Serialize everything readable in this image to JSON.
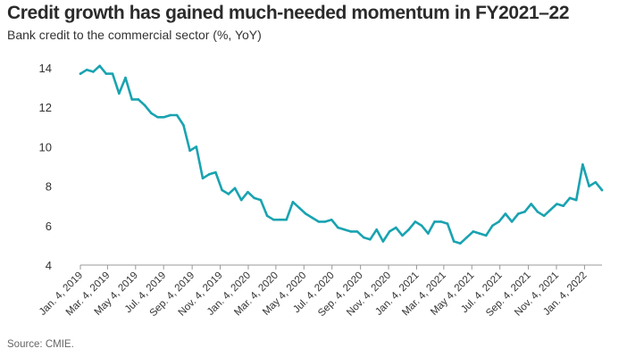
{
  "title": "Credit growth has gained much-needed momentum in FY2021–22",
  "subtitle": "Bank credit to the commercial sector (%, YoY)",
  "source": "Source: CMIE.",
  "colors": {
    "line": "#19a3b1",
    "axis": "#999999",
    "text": "#333333"
  },
  "chart_data": {
    "type": "line",
    "title": "Credit growth has gained much-needed momentum in FY2021–22",
    "ylabel": "Bank credit to the commercial sector (%, YoY)",
    "xlabel": "",
    "ylim": [
      4,
      14
    ],
    "yticks": [
      4,
      6,
      8,
      10,
      12,
      14
    ],
    "grid": false,
    "x_start": "Jan. 4, 2019",
    "x_interval_days": 14,
    "xtick_labels": [
      "Jan. 4, 2019",
      "Mar. 4, 2019",
      "May 4, 2019",
      "Jul. 4, 2019",
      "Sep. 4, 2019",
      "Nov. 4, 2019",
      "Jan. 4, 2020",
      "Mar. 4, 2020",
      "May 4, 2020",
      "Jul. 4, 2020",
      "Sep. 4, 2020",
      "Nov. 4, 2020",
      "Jan. 4, 2021",
      "Mar. 4, 2021",
      "May 4, 2021",
      "Jul. 4, 2021",
      "Sep. 4, 2021",
      "Nov. 4, 2021",
      "Jan. 4, 2022"
    ],
    "series": [
      {
        "name": "Bank credit to the commercial sector",
        "values": [
          13.7,
          13.9,
          13.8,
          14.1,
          13.7,
          13.7,
          12.7,
          13.5,
          12.4,
          12.4,
          12.1,
          11.7,
          11.5,
          11.5,
          11.6,
          11.6,
          11.1,
          9.8,
          10.0,
          8.4,
          8.6,
          8.7,
          7.8,
          7.6,
          7.9,
          7.3,
          7.7,
          7.4,
          7.3,
          6.5,
          6.3,
          6.3,
          6.3,
          7.2,
          6.9,
          6.6,
          6.4,
          6.2,
          6.2,
          6.3,
          5.9,
          5.8,
          5.7,
          5.7,
          5.4,
          5.3,
          5.8,
          5.2,
          5.7,
          5.9,
          5.5,
          5.8,
          6.2,
          6.0,
          5.6,
          6.2,
          6.2,
          6.1,
          5.2,
          5.1,
          5.4,
          5.7,
          5.6,
          5.5,
          6.0,
          6.2,
          6.6,
          6.2,
          6.6,
          6.7,
          7.1,
          6.7,
          6.5,
          6.8,
          7.1,
          7.0,
          7.4,
          7.3,
          9.1,
          8.0,
          8.2,
          7.8
        ]
      }
    ]
  }
}
